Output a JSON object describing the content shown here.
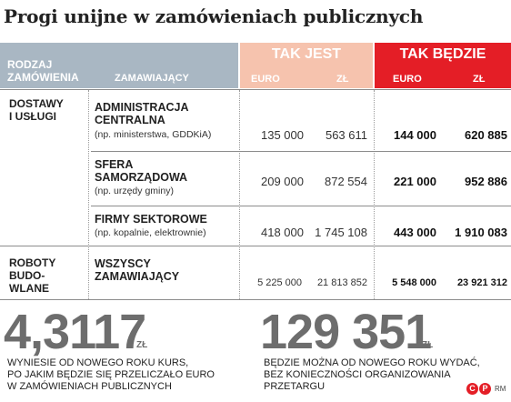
{
  "title": "Progi unijne w zamówieniach publicznych",
  "header": {
    "col_type": "RODZAJ\nZAMÓWIENIA",
    "col_buyer": "ZAMAWIAJĄCY",
    "now": "TAK JEST",
    "future": "TAK BĘDZIE",
    "euro": "EURO",
    "zl": "ZŁ"
  },
  "rows": [
    {
      "category": "DOSTAWY\nI USŁUGI",
      "buyer": "ADMINISTRACJA\nCENTRALNA",
      "note": "(np. ministerstwa, GDDKiA)",
      "now_euro": "135 000",
      "now_zl": "563 611",
      "new_euro": "144 000",
      "new_zl": "620 885"
    },
    {
      "category": "",
      "buyer": "SFERA\nSAMORZĄDOWA",
      "note": "(np. urzędy gminy)",
      "now_euro": "209 000",
      "now_zl": "872 554",
      "new_euro": "221 000",
      "new_zl": "952 886"
    },
    {
      "category": "",
      "buyer": "FIRMY SEKTOROWE",
      "note": "(np. kopalnie, elektrownie)",
      "now_euro": "418 000",
      "now_zl": "1 745 108",
      "new_euro": "443 000",
      "new_zl": "1 910 083"
    },
    {
      "category": "ROBOTY\nBUDO-\nWLANE",
      "buyer": "WSZYSCY\nZAMAWIAJĄCY",
      "note": "",
      "now_euro": "5 225 000",
      "now_zl": "21 813 852",
      "new_euro": "5 548 000",
      "new_zl": "23 921 312"
    }
  ],
  "facts": [
    {
      "value": "4,3117",
      "unit": "ZŁ",
      "caption": "WYNIESIE OD NOWEGO ROKU KURS,\nPO JAKIM BĘDZIE SIĘ PRZELICZAŁO EURO\nW ZAMÓWIENIACH PUBLICZNYCH"
    },
    {
      "value": "129 351",
      "unit": "ZŁ",
      "caption": "BĘDZIE MOŻNA OD NOWEGO ROKU WYDAĆ,\nBEZ KONIECZNOŚCI ORGANIZOWANIA\nPRZETARGU"
    }
  ],
  "credit": {
    "mark1": "C",
    "mark2": "P",
    "text": "RM",
    "brand_color": "#e41e26"
  }
}
